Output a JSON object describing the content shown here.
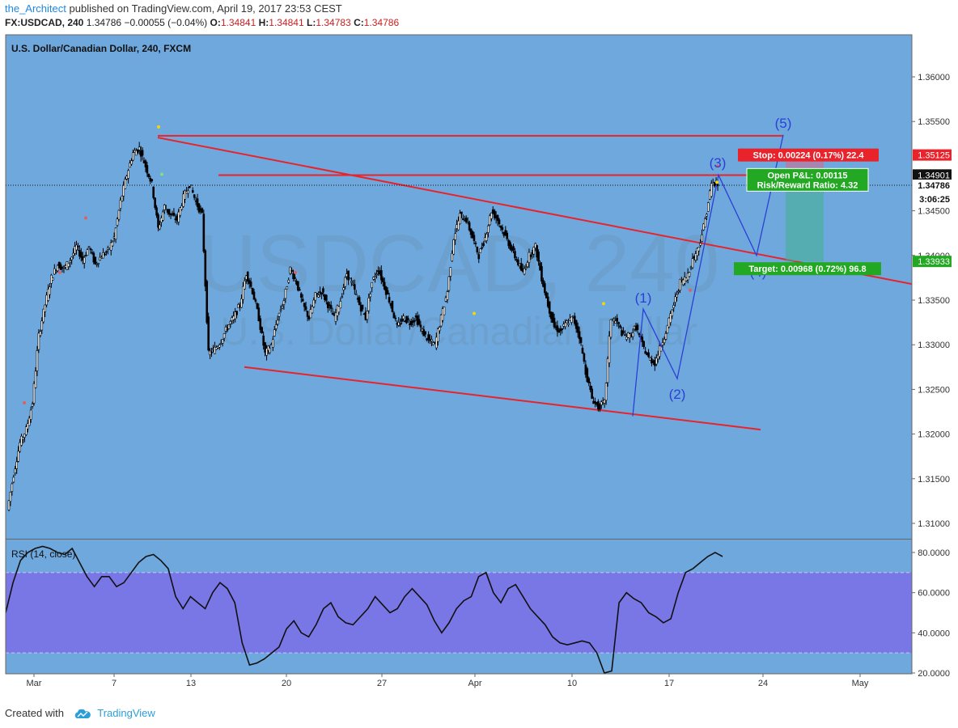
{
  "header": {
    "author": "the_Architect",
    "published_text": "published on TradingView.com, April 19, 2017 23:53 CEST",
    "symbol": "FX:USDCAD, 240",
    "last": "1.34786",
    "change": "−0.00055 (−0.04%)",
    "o_label": "O:",
    "o_value": "1.34841",
    "h_label": "H:",
    "h_value": "1.34841",
    "l_label": "L:",
    "l_value": "1.34783",
    "c_label": "C:",
    "c_value": "1.34786"
  },
  "chart": {
    "title": "U.S. Dollar/Canadian Dollar, 240, FXCM",
    "watermark_big": "USDCAD, 240",
    "watermark_small": "U.S. Dollar/Canadian Dollar"
  },
  "colors": {
    "background": "#6fa8dc",
    "candle": "#000000",
    "trendline": "#e8232b",
    "wave": "#2b3fd6",
    "rsi_band": "#7b6de8",
    "stop_box": "#e8232b",
    "target_box": "#22a822"
  },
  "price_axis": {
    "ticks": [
      "1.36000",
      "1.35500",
      "1.35125",
      "1.34901",
      "1.34786",
      "1.34500",
      "1.34000",
      "1.33933",
      "1.33500",
      "1.33000",
      "1.32500",
      "1.32000",
      "1.31500",
      "1.31000"
    ],
    "timer": "3:06:25"
  },
  "time_axis": {
    "ticks": [
      "Mar",
      "7",
      "13",
      "20",
      "27",
      "Apr",
      "10",
      "17",
      "24",
      "May"
    ]
  },
  "position": {
    "stop_label": "Stop: 0.00224 (0.17%) 22.4",
    "pnl_label": "Open P&L: 0.00115",
    "rr_label": "Risk/Reward Ratio: 4.32",
    "target_label": "Target: 0.00968 (0.72%) 96.8"
  },
  "waves": [
    "(1)",
    "(2)",
    "(3)",
    "(4)",
    "(5)"
  ],
  "rsi": {
    "label": "RSI (14, close)",
    "ticks": [
      "80.0000",
      "60.0000",
      "40.0000",
      "20.0000"
    ]
  },
  "footer": {
    "created_with": "Created with",
    "brand": "TradingView"
  },
  "chart_data": [
    {
      "type": "candlestick",
      "title": "U.S. Dollar/Canadian Dollar, 240, FXCM",
      "xlabel": "",
      "ylabel": "",
      "x_ticks": [
        "Mar",
        "7",
        "13",
        "20",
        "27",
        "Apr",
        "10",
        "17",
        "24",
        "May"
      ],
      "ylim": [
        1.3075,
        1.3635
      ],
      "grid": false,
      "approx_price_path": [
        [
          1.3115,
          1.3155,
          1.319,
          1.3205,
          1.3235,
          1.331,
          1.3345,
          1.3375,
          1.339,
          1.3385,
          1.3395,
          1.341,
          1.3395,
          1.341,
          1.339,
          1.34,
          1.3405,
          1.342,
          1.346,
          1.349,
          1.3515,
          1.352,
          1.35,
          1.348,
          1.343,
          1.3455,
          1.3445,
          1.344,
          1.3465,
          1.348,
          1.346,
          1.3445,
          1.329,
          1.3295,
          1.3305,
          1.332,
          1.333,
          1.3345,
          1.338,
          1.336,
          1.333,
          1.329,
          1.33,
          1.333,
          1.335,
          1.3385,
          1.337,
          1.3345,
          1.333,
          1.3355,
          1.336,
          1.3345,
          1.333,
          1.335,
          1.338,
          1.3365,
          1.3345,
          1.333,
          1.337,
          1.3385,
          1.3365,
          1.3345,
          1.332,
          1.333,
          1.3325,
          1.333,
          1.3315,
          1.3305,
          1.33,
          1.333,
          1.336,
          1.342,
          1.3445,
          1.344,
          1.342,
          1.34,
          1.342,
          1.345,
          1.344,
          1.3425,
          1.341,
          1.3395,
          1.338,
          1.34,
          1.341,
          1.3375,
          1.3345,
          1.332,
          1.3315,
          1.3325,
          1.333,
          1.331,
          1.327,
          1.324,
          1.323,
          1.3235,
          1.333,
          1.3325,
          1.331,
          1.331,
          1.332,
          1.33,
          1.3285,
          1.328,
          1.33,
          1.332,
          1.3345,
          1.337,
          1.3375,
          1.3395,
          1.341,
          1.344,
          1.348,
          1.3479
        ]
      ],
      "levels": {
        "upper_horizontal": 1.3534,
        "lower_horizontal": 1.349,
        "stop": 1.35125,
        "entry": 1.34901,
        "last": 1.34786,
        "target": 1.33933
      },
      "annotations": [
        "Stop: 0.00224 (0.17%) 22.4",
        "Open P&L: 0.00115",
        "Risk/Reward Ratio: 4.32",
        "Target: 0.00968 (0.72%) 96.8",
        "(1)",
        "(2)",
        "(3)",
        "(4)",
        "(5)"
      ],
      "elliott_wave_points": [
        {
          "label": "start",
          "price": 1.322
        },
        {
          "label": "(1)",
          "price": 1.334
        },
        {
          "label": "(2)",
          "price": 1.3262
        },
        {
          "label": "(3)",
          "price": 1.349
        },
        {
          "label": "(4)",
          "price": 1.34
        },
        {
          "label": "(5)",
          "price": 1.3535
        }
      ]
    },
    {
      "type": "line",
      "title": "RSI (14, close)",
      "ylim": [
        15,
        85
      ],
      "y_ticks": [
        80,
        60,
        40,
        20
      ],
      "band": [
        30,
        70
      ],
      "values": [
        50,
        65,
        76,
        80,
        82,
        83,
        82,
        80,
        79,
        82,
        75,
        68,
        63,
        68,
        68,
        63,
        65,
        70,
        75,
        78,
        79,
        76,
        72,
        58,
        52,
        58,
        55,
        52,
        60,
        65,
        62,
        55,
        35,
        24,
        25,
        27,
        30,
        33,
        42,
        46,
        40,
        38,
        44,
        52,
        55,
        48,
        45,
        44,
        48,
        52,
        58,
        54,
        50,
        52,
        58,
        62,
        58,
        54,
        46,
        40,
        45,
        52,
        56,
        58,
        68,
        70,
        60,
        55,
        62,
        64,
        58,
        52,
        48,
        44,
        38,
        35,
        34,
        35,
        36,
        35,
        30,
        20,
        21,
        55,
        60,
        57,
        55,
        50,
        48,
        45,
        47,
        60,
        70,
        72,
        75,
        78,
        80,
        78
      ]
    }
  ]
}
